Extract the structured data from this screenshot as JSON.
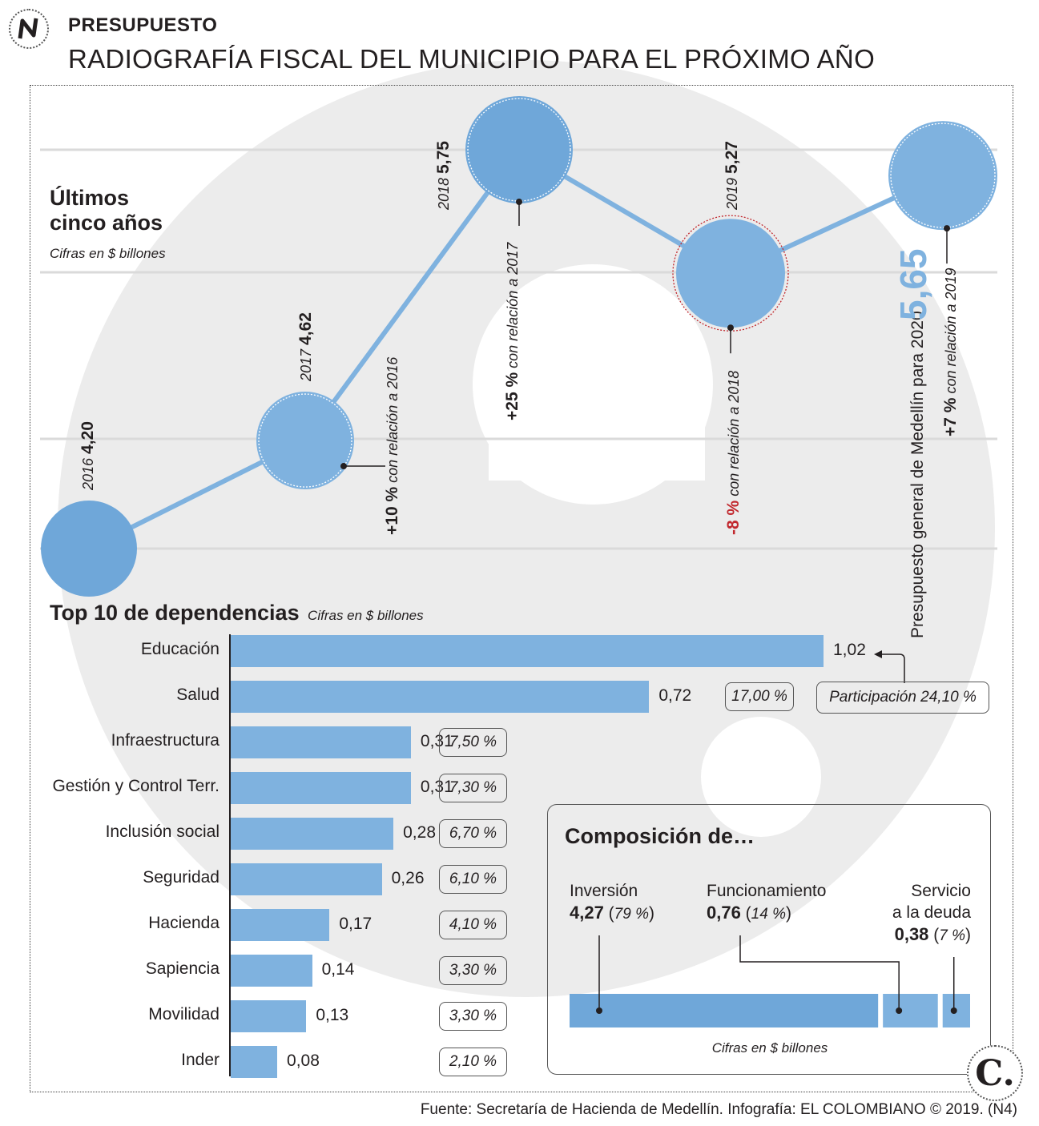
{
  "header": {
    "kicker": "PRESUPUESTO",
    "title": "RADIOGRAFÍA FISCAL DEL MUNICIPIO PARA EL PRÓXIMO AÑO",
    "logo_icon": "n-logo-icon"
  },
  "five_years": {
    "title_line1": "Últimos",
    "title_line2": "cinco años",
    "note": "Cifras en $ billones",
    "points": [
      {
        "year": "2016",
        "value": "4,20",
        "change": "",
        "change_text": ""
      },
      {
        "year": "2017",
        "value": "4,62",
        "change": "+10 %",
        "change_text": " con relación a 2016"
      },
      {
        "year": "2018",
        "value": "5,75",
        "change": "+25 %",
        "change_text": " con relación a 2017"
      },
      {
        "year": "2019",
        "value": "5,27",
        "change": "-8 %",
        "change_text": " con relación a 2018"
      },
      {
        "year": "",
        "value": "5,65",
        "change": "+7 %",
        "change_text": " con relación a 2019"
      }
    ],
    "label_2020": "Presupuesto general de Medellín para 2020",
    "colors": {
      "circle": "#7fb2df",
      "circle_dark": "#6fa7d9",
      "line": "#7fb2df",
      "value_2020": "#7fb2df",
      "negative": "#c1272d"
    }
  },
  "top10": {
    "title": "Top 10 de dependencias",
    "note": "Cifras en $ billones",
    "participation_label": "Participación 24,10 %"
  },
  "composition": {
    "title": "Composición de…",
    "items": [
      {
        "name": "Inversión",
        "value": "4,27",
        "pct": "79 %"
      },
      {
        "name": "Funcionamiento",
        "value": "0,76",
        "pct": "14 %"
      },
      {
        "name_line1": "Servicio",
        "name_line2": "a la deuda",
        "value": "0,38",
        "pct": "7 %"
      }
    ],
    "note": "Cifras en $ billones"
  },
  "chart_data": [
    {
      "type": "line",
      "title": "Últimos cinco años",
      "ylabel": "Cifras en $ billones",
      "x": [
        "2016",
        "2017",
        "2018",
        "2019",
        "2020"
      ],
      "values": [
        4.2,
        4.62,
        5.75,
        5.27,
        5.65
      ],
      "changes": [
        "",
        "+10 %",
        "+25 %",
        "-8 %",
        "+7 %"
      ]
    },
    {
      "type": "bar",
      "title": "Top 10 de dependencias",
      "ylabel": "Cifras en $ billones",
      "categories": [
        "Educación",
        "Salud",
        "Infraestructura",
        "Gestión y Control Terr.",
        "Inclusión social",
        "Seguridad",
        "Hacienda",
        "Sapiencia",
        "Movilidad",
        "Inder"
      ],
      "values": [
        1.02,
        0.72,
        0.31,
        0.31,
        0.28,
        0.26,
        0.17,
        0.14,
        0.13,
        0.08
      ],
      "value_labels": [
        "1,02",
        "0,72",
        "0,31",
        "0,31",
        "0,28",
        "0,26",
        "0,17",
        "0,14",
        "0,13",
        "0,08"
      ],
      "shares": [
        "24,10 %",
        "17,00 %",
        "7,50 %",
        "7,30 %",
        "6,70 %",
        "6,10 %",
        "4,10 %",
        "3,30 %",
        "3,30 %",
        "2,10 %"
      ]
    },
    {
      "type": "bar",
      "title": "Composición de…",
      "categories": [
        "Inversión",
        "Funcionamiento",
        "Servicio a la deuda"
      ],
      "values": [
        4.27,
        0.76,
        0.38
      ],
      "shares": [
        "79 %",
        "14 %",
        "7 %"
      ]
    }
  ],
  "footer": {
    "source": "Fuente: Secretaría de Hacienda de Medellín. Infografía: EL COLOMBIANO © 2019. (N4)",
    "brand_letter": "C."
  }
}
